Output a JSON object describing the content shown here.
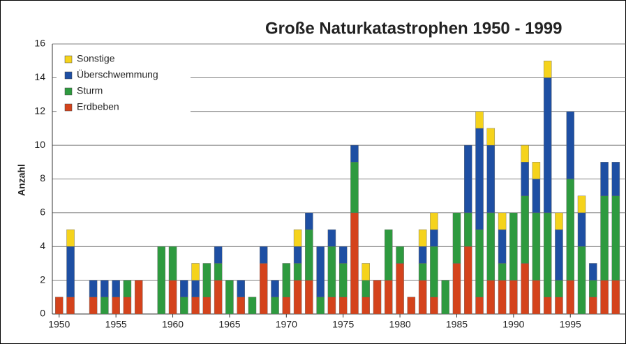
{
  "chart_data": {
    "type": "stacked_bar",
    "title": "Große Naturkatastrophen 1950 - 1999",
    "y_label": "Anzahl",
    "x": [
      1950,
      1951,
      1952,
      1953,
      1954,
      1955,
      1956,
      1957,
      1958,
      1959,
      1960,
      1961,
      1962,
      1963,
      1964,
      1965,
      1966,
      1967,
      1968,
      1969,
      1970,
      1971,
      1972,
      1973,
      1974,
      1975,
      1976,
      1977,
      1978,
      1979,
      1980,
      1981,
      1982,
      1983,
      1984,
      1985,
      1986,
      1987,
      1988,
      1989,
      1990,
      1991,
      1992,
      1993,
      1994,
      1995,
      1996,
      1997,
      1998,
      1999
    ],
    "series": [
      {
        "name": "Erdbeben",
        "color": "#d4431c",
        "values": [
          1,
          1,
          0,
          1,
          0,
          1,
          1,
          2,
          0,
          0,
          2,
          0,
          1,
          1,
          2,
          0,
          1,
          0,
          3,
          0,
          1,
          2,
          2,
          0,
          1,
          1,
          6,
          1,
          2,
          2,
          3,
          1,
          2,
          1,
          0,
          3,
          4,
          1,
          2,
          2,
          2,
          3,
          2,
          1,
          1,
          2,
          0,
          1,
          2,
          2
        ]
      },
      {
        "name": "Sturm",
        "color": "#2e9a3f",
        "values": [
          0,
          0,
          0,
          0,
          1,
          0,
          1,
          0,
          0,
          4,
          2,
          1,
          0,
          2,
          1,
          2,
          0,
          1,
          0,
          1,
          2,
          1,
          3,
          1,
          3,
          2,
          3,
          1,
          0,
          3,
          1,
          0,
          1,
          3,
          2,
          3,
          2,
          4,
          4,
          1,
          4,
          4,
          4,
          5,
          1,
          6,
          4,
          1,
          5,
          5
        ]
      },
      {
        "name": "Überschwemmung",
        "color": "#1e4fa3",
        "values": [
          0,
          3,
          0,
          1,
          1,
          1,
          0,
          0,
          0,
          0,
          0,
          1,
          1,
          0,
          1,
          0,
          1,
          0,
          1,
          1,
          0,
          1,
          1,
          3,
          1,
          1,
          1,
          0,
          0,
          0,
          0,
          0,
          1,
          1,
          0,
          0,
          4,
          6,
          4,
          2,
          0,
          2,
          2,
          8,
          3,
          4,
          2,
          1,
          2,
          2
        ]
      },
      {
        "name": "Sonstige",
        "color": "#f5d31c",
        "values": [
          0,
          1,
          0,
          0,
          0,
          0,
          0,
          0,
          0,
          0,
          0,
          0,
          1,
          0,
          0,
          0,
          0,
          0,
          0,
          0,
          0,
          1,
          0,
          0,
          0,
          0,
          0,
          1,
          0,
          0,
          0,
          0,
          1,
          1,
          0,
          0,
          0,
          1,
          1,
          1,
          0,
          1,
          1,
          1,
          1,
          0,
          1,
          0,
          0,
          0
        ]
      }
    ],
    "xlim": [
      1949.4,
      1999.9
    ],
    "xticks": [
      1950,
      1955,
      1960,
      1965,
      1970,
      1975,
      1980,
      1985,
      1990,
      1995
    ],
    "ylim": [
      0,
      16
    ],
    "yticks": [
      0,
      2,
      4,
      6,
      8,
      10,
      12,
      14,
      16
    ],
    "grid": true,
    "legend": "upper left"
  }
}
